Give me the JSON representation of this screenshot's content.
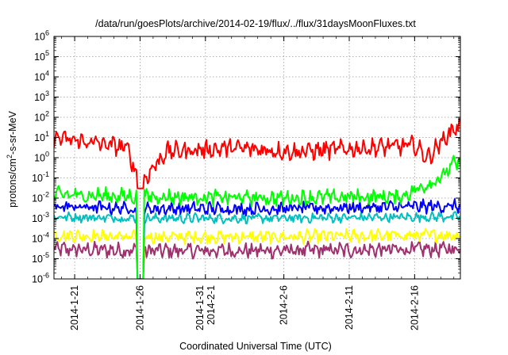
{
  "chart_data": {
    "type": "line",
    "title": "/data/run/goesPlots/archive/2014-02-19/flux/../flux/31daysMoonFluxes.txt",
    "xlabel": "Coordinated Universal Time (UTC)",
    "ylabel": "protons/cm²-s-sr-MeV",
    "yscale": "log",
    "ylim": [
      1e-06,
      1000000.0
    ],
    "xlim": [
      "2014-01-19T10:00",
      "2014-02-19T12:00"
    ],
    "grid": true,
    "y_ticks": [
      {
        "base": "10",
        "exp": "-6"
      },
      {
        "base": "10",
        "exp": "-5"
      },
      {
        "base": "10",
        "exp": "-4"
      },
      {
        "base": "10",
        "exp": "-3"
      },
      {
        "base": "10",
        "exp": "-2"
      },
      {
        "base": "10",
        "exp": "-1"
      },
      {
        "base": "10",
        "exp": "0"
      },
      {
        "base": "10",
        "exp": "1"
      },
      {
        "base": "10",
        "exp": "2"
      },
      {
        "base": "10",
        "exp": "3"
      },
      {
        "base": "10",
        "exp": "4"
      },
      {
        "base": "10",
        "exp": "5"
      },
      {
        "base": "10",
        "exp": "6"
      }
    ],
    "x_ticks": [
      {
        "date": "2014-01-21",
        "label": "2014-1-21"
      },
      {
        "date": "2014-01-26",
        "label": "2014-1-26"
      },
      {
        "date": "2014-01-31",
        "label": "2014-1-31\n2014-2-1"
      },
      {
        "date": "2014-02-06",
        "label": "2014-2-6"
      },
      {
        "date": "2014-02-11",
        "label": "2014-2-11"
      },
      {
        "date": "2014-02-16",
        "label": "2014-2-16"
      }
    ],
    "series": [
      {
        "color": "#ff0000",
        "level": 10.0,
        "spread": 0.35,
        "dropto": 0.03,
        "x": [
          "2014-01-19",
          "2014-01-23",
          "2014-01-25",
          "2014-01-26",
          "2014-01-28",
          "2014-02-02",
          "2014-02-07",
          "2014-02-12",
          "2014-02-16",
          "2014-02-17",
          "2014-02-19"
        ],
        "values": [
          10,
          5,
          3,
          0.05,
          2,
          3,
          2,
          3,
          4,
          1,
          30
        ]
      },
      {
        "color": "#00ff00",
        "level": 0.01,
        "spread": 0.3,
        "dropto": 1e-06,
        "x": [
          "2014-01-19",
          "2014-01-26",
          "2014-02-05",
          "2014-02-15",
          "2014-02-18",
          "2014-02-19"
        ],
        "values": [
          0.015,
          0.012,
          0.01,
          0.012,
          0.1,
          0.5
        ]
      },
      {
        "color": "#0000ff",
        "level": 0.003,
        "spread": 0.25,
        "dropto": 1e-06,
        "x": [
          "2014-01-19",
          "2014-01-26",
          "2014-02-05",
          "2014-02-19"
        ],
        "values": [
          0.004,
          0.003,
          0.003,
          0.004
        ]
      },
      {
        "color": "#00c0c0",
        "level": 0.001,
        "spread": 0.18,
        "dropto": 1e-06,
        "x": [
          "2014-01-19",
          "2014-01-26",
          "2014-02-05",
          "2014-02-19"
        ],
        "values": [
          0.0012,
          0.001,
          0.001,
          0.0012
        ]
      },
      {
        "color": "#ffff00",
        "level": 0.0001,
        "spread": 0.25,
        "dropto": 1e-06,
        "x": [
          "2014-01-19",
          "2014-01-26",
          "2014-02-05",
          "2014-02-19"
        ],
        "values": [
          0.00015,
          0.00012,
          0.00012,
          0.00015
        ]
      },
      {
        "color": "#a0306e",
        "level": 1e-05,
        "spread": 0.3,
        "dropto": 1e-06,
        "x": [
          "2014-01-19",
          "2014-01-26",
          "2014-02-05",
          "2014-02-19"
        ],
        "values": [
          3e-05,
          2.5e-05,
          2.5e-05,
          3e-05
        ]
      }
    ]
  }
}
